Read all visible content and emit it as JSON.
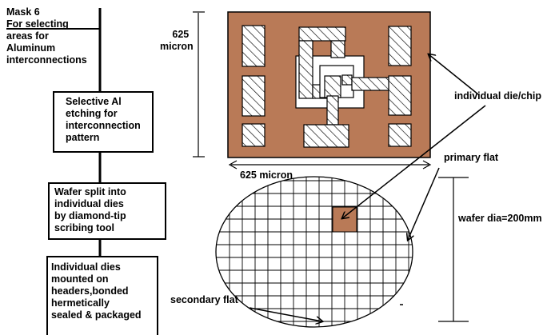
{
  "flow": {
    "mask": [
      "Mask 6",
      "For selecting",
      "areas for",
      "Aluminum",
      "interconnections"
    ],
    "step1": [
      "Selective Al",
      "etching for",
      "interconnection",
      "pattern"
    ],
    "step2": [
      "Wafer split into",
      "individual dies",
      "by diamond-tip",
      "scribing tool"
    ],
    "step3": [
      "Individual dies",
      "mounted on",
      "headers,bonded",
      "hermetically",
      "sealed & packaged"
    ]
  },
  "chip": {
    "height_label": [
      "625",
      "micron"
    ],
    "width_label": "625 micron",
    "callout": "individual die/chip",
    "fill_color": "#b97a57"
  },
  "wafer": {
    "primary_flat": "primary flat",
    "secondary_flat": "secondary flat",
    "diameter": "wafer dia=200mm",
    "highlight_color": "#b97a57"
  }
}
